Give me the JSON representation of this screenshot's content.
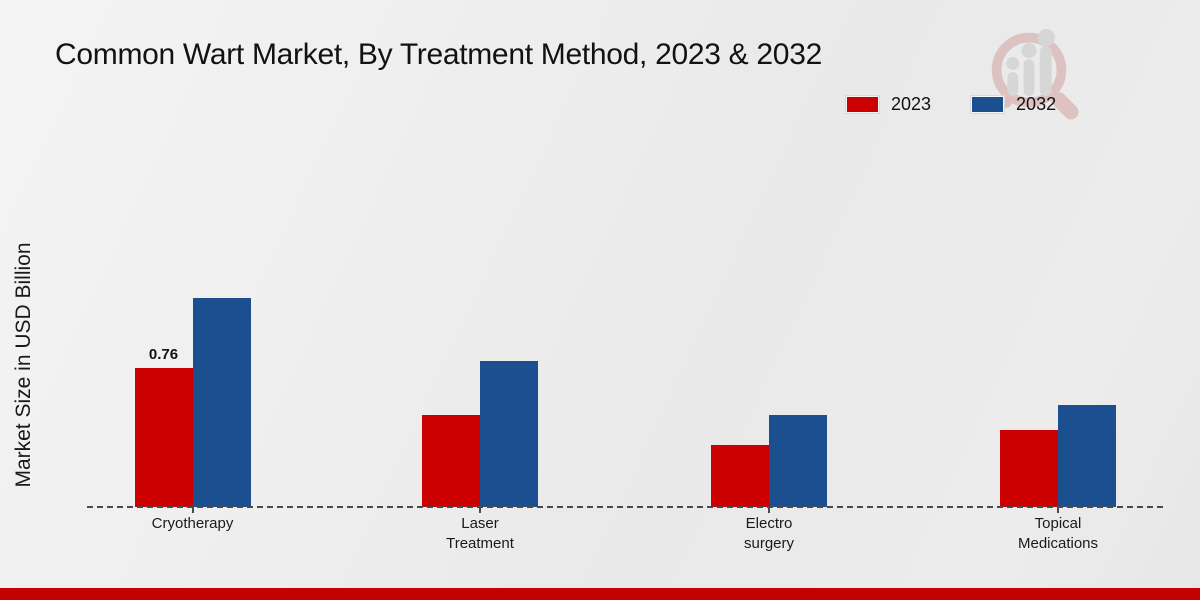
{
  "page": {
    "title": "Common Wart Market, By Treatment Method, 2023 & 2032",
    "ylabel": "Market Size in USD Billion"
  },
  "colors": {
    "series_2023": "#cc0000",
    "series_2032": "#1b4f8f",
    "baseline": "#4a4a4a",
    "bottom_band": "#c40000",
    "background": "#ececec",
    "title_text": "#121212"
  },
  "icons": {
    "watermark": "bar-chart-magnifier-logo"
  },
  "chart_data": {
    "type": "bar",
    "title": "Common Wart Market, By Treatment Method, 2023 & 2032",
    "xlabel": "",
    "ylabel": "Market Size in USD Billion",
    "categories": [
      "Cryotherapy",
      "Laser\nTreatment",
      "Electro\nsurgery",
      "Topical\nMedications"
    ],
    "series": [
      {
        "name": "2023",
        "color": "#cc0000",
        "values": [
          0.76,
          0.5,
          0.34,
          0.42
        ],
        "labels": [
          "0.76",
          null,
          null,
          null
        ]
      },
      {
        "name": "2032",
        "color": "#1b4f8f",
        "values": [
          1.14,
          0.8,
          0.5,
          0.56
        ],
        "labels": [
          null,
          null,
          null,
          null
        ]
      }
    ],
    "ylim": [
      0,
      2.2
    ],
    "grid": false,
    "y_axis_ticks_visible": false,
    "legend_position": "top-right",
    "baseline_style": "dashed"
  }
}
